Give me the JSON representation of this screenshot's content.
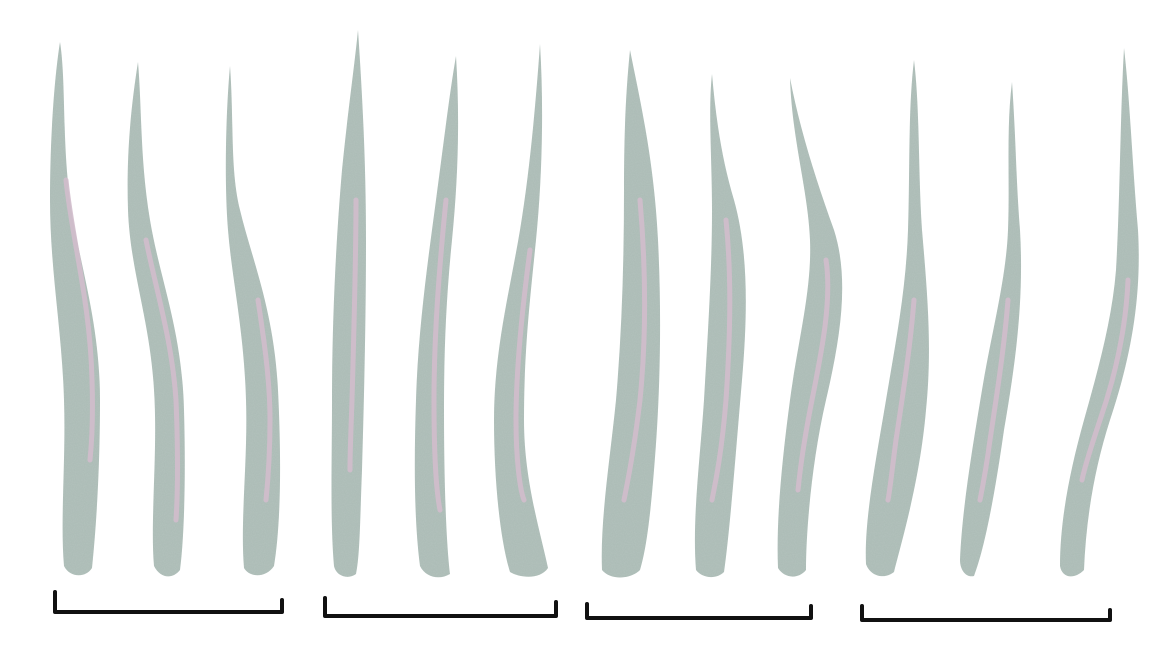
{
  "scene": {
    "description_free": true,
    "background_color": "#ffffff",
    "petal_color": "#b3c3bd",
    "vein_color": "#d2bdcc",
    "bracket_color": "#111111"
  },
  "groups": [
    {
      "name": "group-1",
      "petal_count": 3
    },
    {
      "name": "group-2",
      "petal_count": 3
    },
    {
      "name": "group-3",
      "petal_count": 3
    },
    {
      "name": "group-4",
      "petal_count": 3
    }
  ]
}
